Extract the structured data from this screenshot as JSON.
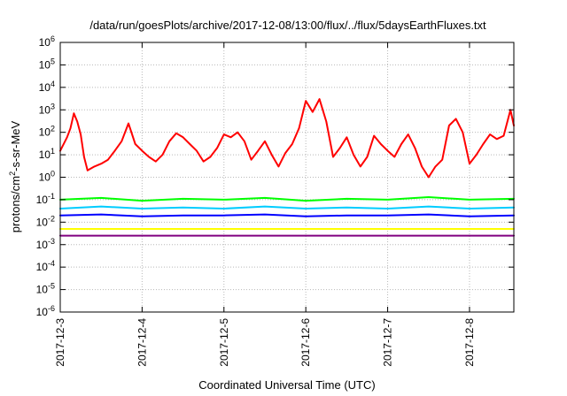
{
  "chart_data": {
    "type": "line",
    "title": "/data/run/goesPlots/archive/2017-12-08/13:00/flux/../flux/5daysEarthFluxes.txt",
    "xlabel": "Coordinated Universal Time (UTC)",
    "ylabel_main": "protons/cm",
    "ylabel_sup": "2",
    "ylabel_rest": "-s-sr-MeV",
    "yscale": "log",
    "xlim": [
      "2017-12-03",
      "2017-12-08 13:00"
    ],
    "ylim": [
      1e-06,
      1000000.0
    ],
    "grid": true,
    "x_ticks": [
      "2017-12-3",
      "2017-12-4",
      "2017-12-5",
      "2017-12-6",
      "2017-12-7",
      "2017-12-8"
    ],
    "y_ticks": [
      {
        "base": "10",
        "exp": "-6"
      },
      {
        "base": "10",
        "exp": "-5"
      },
      {
        "base": "10",
        "exp": "-4"
      },
      {
        "base": "10",
        "exp": "-3"
      },
      {
        "base": "10",
        "exp": "-2"
      },
      {
        "base": "10",
        "exp": "-1"
      },
      {
        "base": "10",
        "exp": "0"
      },
      {
        "base": "10",
        "exp": "1"
      },
      {
        "base": "10",
        "exp": "2"
      },
      {
        "base": "10",
        "exp": "3"
      },
      {
        "base": "10",
        "exp": "4"
      },
      {
        "base": "10",
        "exp": "5"
      },
      {
        "base": "10",
        "exp": "6"
      }
    ],
    "series": [
      {
        "color": "#ff0000",
        "width": 2,
        "points": [
          [
            "2017-12-03 00:00",
            15
          ],
          [
            "2017-12-03 02:00",
            60
          ],
          [
            "2017-12-03 03:00",
            150
          ],
          [
            "2017-12-03 04:00",
            700
          ],
          [
            "2017-12-03 05:00",
            300
          ],
          [
            "2017-12-03 06:00",
            80
          ],
          [
            "2017-12-03 07:00",
            8
          ],
          [
            "2017-12-03 08:00",
            2
          ],
          [
            "2017-12-03 10:00",
            3
          ],
          [
            "2017-12-03 12:00",
            4
          ],
          [
            "2017-12-03 14:00",
            6
          ],
          [
            "2017-12-03 16:00",
            15
          ],
          [
            "2017-12-03 18:00",
            40
          ],
          [
            "2017-12-03 20:00",
            250
          ],
          [
            "2017-12-03 22:00",
            30
          ],
          [
            "2017-12-04 00:00",
            15
          ],
          [
            "2017-12-04 02:00",
            8
          ],
          [
            "2017-12-04 04:00",
            5
          ],
          [
            "2017-12-04 06:00",
            10
          ],
          [
            "2017-12-04 08:00",
            40
          ],
          [
            "2017-12-04 10:00",
            90
          ],
          [
            "2017-12-04 12:00",
            60
          ],
          [
            "2017-12-04 14:00",
            30
          ],
          [
            "2017-12-04 16:00",
            15
          ],
          [
            "2017-12-04 18:00",
            5
          ],
          [
            "2017-12-04 20:00",
            8
          ],
          [
            "2017-12-04 22:00",
            20
          ],
          [
            "2017-12-05 00:00",
            80
          ],
          [
            "2017-12-05 02:00",
            60
          ],
          [
            "2017-12-05 04:00",
            100
          ],
          [
            "2017-12-05 06:00",
            40
          ],
          [
            "2017-12-05 08:00",
            6
          ],
          [
            "2017-12-05 10:00",
            15
          ],
          [
            "2017-12-05 12:00",
            40
          ],
          [
            "2017-12-05 14:00",
            10
          ],
          [
            "2017-12-05 16:00",
            3
          ],
          [
            "2017-12-05 18:00",
            12
          ],
          [
            "2017-12-05 20:00",
            30
          ],
          [
            "2017-12-05 22:00",
            150
          ],
          [
            "2017-12-06 00:00",
            2500
          ],
          [
            "2017-12-06 02:00",
            800
          ],
          [
            "2017-12-06 04:00",
            3000
          ],
          [
            "2017-12-06 06:00",
            300
          ],
          [
            "2017-12-06 08:00",
            8
          ],
          [
            "2017-12-06 10:00",
            20
          ],
          [
            "2017-12-06 12:00",
            60
          ],
          [
            "2017-12-06 14:00",
            10
          ],
          [
            "2017-12-06 16:00",
            3
          ],
          [
            "2017-12-06 18:00",
            8
          ],
          [
            "2017-12-06 20:00",
            70
          ],
          [
            "2017-12-06 22:00",
            30
          ],
          [
            "2017-12-07 00:00",
            15
          ],
          [
            "2017-12-07 02:00",
            8
          ],
          [
            "2017-12-07 04:00",
            30
          ],
          [
            "2017-12-07 06:00",
            80
          ],
          [
            "2017-12-07 08:00",
            20
          ],
          [
            "2017-12-07 10:00",
            3
          ],
          [
            "2017-12-07 12:00",
            1
          ],
          [
            "2017-12-07 14:00",
            3
          ],
          [
            "2017-12-07 16:00",
            6
          ],
          [
            "2017-12-07 18:00",
            200
          ],
          [
            "2017-12-07 20:00",
            400
          ],
          [
            "2017-12-07 22:00",
            100
          ],
          [
            "2017-12-08 00:00",
            4
          ],
          [
            "2017-12-08 02:00",
            10
          ],
          [
            "2017-12-08 04:00",
            30
          ],
          [
            "2017-12-08 06:00",
            80
          ],
          [
            "2017-12-08 08:00",
            50
          ],
          [
            "2017-12-08 10:00",
            70
          ],
          [
            "2017-12-08 12:00",
            1000
          ],
          [
            "2017-12-08 13:00",
            200
          ]
        ]
      },
      {
        "color": "#00ff00",
        "width": 2,
        "points": [
          [
            "2017-12-03 00:00",
            0.1
          ],
          [
            "2017-12-03 12:00",
            0.12
          ],
          [
            "2017-12-04 00:00",
            0.09
          ],
          [
            "2017-12-04 12:00",
            0.11
          ],
          [
            "2017-12-05 00:00",
            0.1
          ],
          [
            "2017-12-05 12:00",
            0.12
          ],
          [
            "2017-12-06 00:00",
            0.09
          ],
          [
            "2017-12-06 12:00",
            0.11
          ],
          [
            "2017-12-07 00:00",
            0.1
          ],
          [
            "2017-12-07 12:00",
            0.13
          ],
          [
            "2017-12-08 00:00",
            0.1
          ],
          [
            "2017-12-08 13:00",
            0.11
          ]
        ]
      },
      {
        "color": "#00ccff",
        "width": 2,
        "points": [
          [
            "2017-12-03 00:00",
            0.04
          ],
          [
            "2017-12-03 12:00",
            0.05
          ],
          [
            "2017-12-04 00:00",
            0.04
          ],
          [
            "2017-12-04 12:00",
            0.045
          ],
          [
            "2017-12-05 00:00",
            0.04
          ],
          [
            "2017-12-05 12:00",
            0.05
          ],
          [
            "2017-12-06 00:00",
            0.04
          ],
          [
            "2017-12-06 12:00",
            0.045
          ],
          [
            "2017-12-07 00:00",
            0.04
          ],
          [
            "2017-12-07 12:00",
            0.05
          ],
          [
            "2017-12-08 00:00",
            0.04
          ],
          [
            "2017-12-08 13:00",
            0.045
          ]
        ]
      },
      {
        "color": "#0000ff",
        "width": 2,
        "points": [
          [
            "2017-12-03 00:00",
            0.02
          ],
          [
            "2017-12-03 12:00",
            0.022
          ],
          [
            "2017-12-04 00:00",
            0.018
          ],
          [
            "2017-12-04 12:00",
            0.02
          ],
          [
            "2017-12-05 00:00",
            0.02
          ],
          [
            "2017-12-05 12:00",
            0.022
          ],
          [
            "2017-12-06 00:00",
            0.018
          ],
          [
            "2017-12-06 12:00",
            0.02
          ],
          [
            "2017-12-07 00:00",
            0.02
          ],
          [
            "2017-12-07 12:00",
            0.022
          ],
          [
            "2017-12-08 00:00",
            0.018
          ],
          [
            "2017-12-08 13:00",
            0.02
          ]
        ]
      },
      {
        "color": "#ffff00",
        "width": 2,
        "points": [
          [
            "2017-12-03 00:00",
            0.005
          ],
          [
            "2017-12-04 00:00",
            0.005
          ],
          [
            "2017-12-05 00:00",
            0.005
          ],
          [
            "2017-12-06 00:00",
            0.005
          ],
          [
            "2017-12-07 00:00",
            0.005
          ],
          [
            "2017-12-08 00:00",
            0.005
          ],
          [
            "2017-12-08 13:00",
            0.005
          ]
        ]
      },
      {
        "color": "#800080",
        "width": 2,
        "points": [
          [
            "2017-12-03 00:00",
            0.0025
          ],
          [
            "2017-12-04 00:00",
            0.0025
          ],
          [
            "2017-12-05 00:00",
            0.0025
          ],
          [
            "2017-12-06 00:00",
            0.0025
          ],
          [
            "2017-12-07 00:00",
            0.0025
          ],
          [
            "2017-12-08 00:00",
            0.0025
          ],
          [
            "2017-12-08 13:00",
            0.0025
          ]
        ]
      }
    ]
  }
}
